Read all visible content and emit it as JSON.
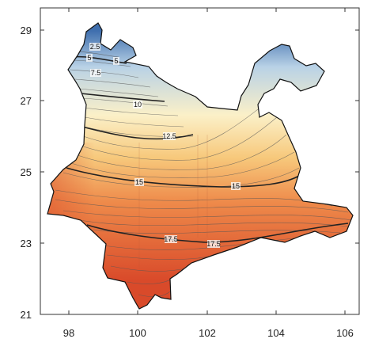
{
  "map": {
    "x_ticks": [
      "98",
      "100",
      "102",
      "104",
      "106"
    ],
    "y_ticks": [
      "29",
      "27",
      "25",
      "23",
      "21"
    ],
    "contour_labels": [
      "2.5",
      "5",
      "5",
      "7.5",
      "10",
      "12.5",
      "15",
      "15",
      "17.5",
      "17.5"
    ],
    "colors": {
      "cold": "#3f6fae",
      "cool": "#b9d2e6",
      "neutral": "#fbf0c8",
      "mild": "#f7c97c",
      "warm": "#ee8a4a",
      "hot": "#d94a2a",
      "contour": "#555555",
      "boundary": "#111111"
    }
  }
}
